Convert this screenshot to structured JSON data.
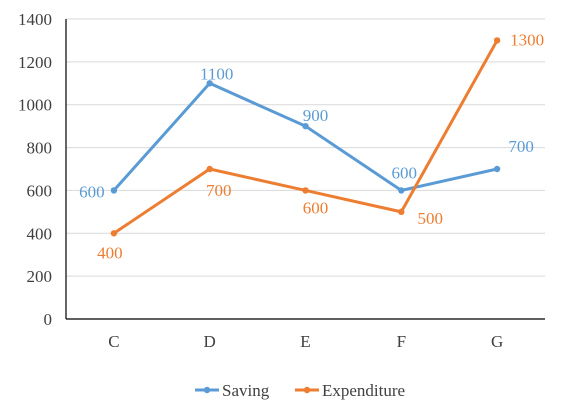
{
  "chart_data": {
    "type": "line",
    "title": "",
    "xlabel": "",
    "ylabel": "",
    "categories": [
      "C",
      "D",
      "E",
      "F",
      "G"
    ],
    "ylim": [
      0,
      1400
    ],
    "yticks": [
      0,
      200,
      400,
      600,
      800,
      1000,
      1200,
      1400
    ],
    "grid": true,
    "legend_position": "bottom",
    "series": [
      {
        "name": "Saving",
        "color": "#5B9BD5",
        "values": [
          600,
          1100,
          900,
          600,
          700
        ],
        "labels": [
          "600",
          "1100",
          "900",
          "600",
          "700"
        ]
      },
      {
        "name": "Expenditure",
        "color": "#ED7D31",
        "values": [
          400,
          700,
          600,
          500,
          1300
        ],
        "labels": [
          "400",
          "700",
          "600",
          "500",
          "1300"
        ]
      }
    ]
  }
}
